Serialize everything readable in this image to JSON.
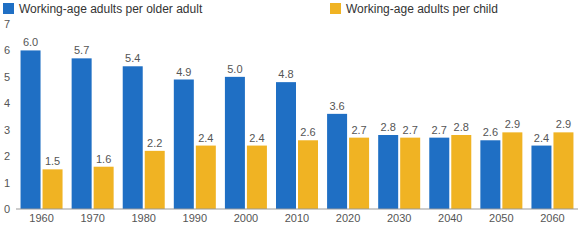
{
  "chart_data": {
    "type": "bar",
    "categories": [
      "1960",
      "1970",
      "1980",
      "1990",
      "2000",
      "2010",
      "2020",
      "2030",
      "2040",
      "2050",
      "2060"
    ],
    "series": [
      {
        "name": "Working-age adults per older adult",
        "color": "#1f6fc4",
        "values": [
          6.0,
          5.7,
          5.4,
          4.9,
          5.0,
          4.8,
          3.6,
          2.8,
          2.7,
          2.6,
          2.4
        ],
        "value_labels": [
          "6.0",
          "5.7",
          "5.4",
          "4.9",
          "5.0",
          "4.8",
          "3.6",
          "2.8",
          "2.7",
          "2.6",
          "2.4"
        ]
      },
      {
        "name": "Working-age adults per child",
        "color": "#f0b323",
        "values": [
          1.5,
          1.6,
          2.2,
          2.4,
          2.4,
          2.6,
          2.7,
          2.7,
          2.8,
          2.9,
          2.9
        ],
        "value_labels": [
          "1.5",
          "1.6",
          "2.2",
          "2.4",
          "2.4",
          "2.6",
          "2.7",
          "2.7",
          "2.8",
          "2.9",
          "2.9"
        ]
      }
    ],
    "ylim": [
      0,
      7
    ],
    "yticks": [
      0,
      1,
      2,
      3,
      4,
      5,
      6,
      7
    ],
    "grid": false,
    "legend": "top",
    "data_labels": true
  }
}
